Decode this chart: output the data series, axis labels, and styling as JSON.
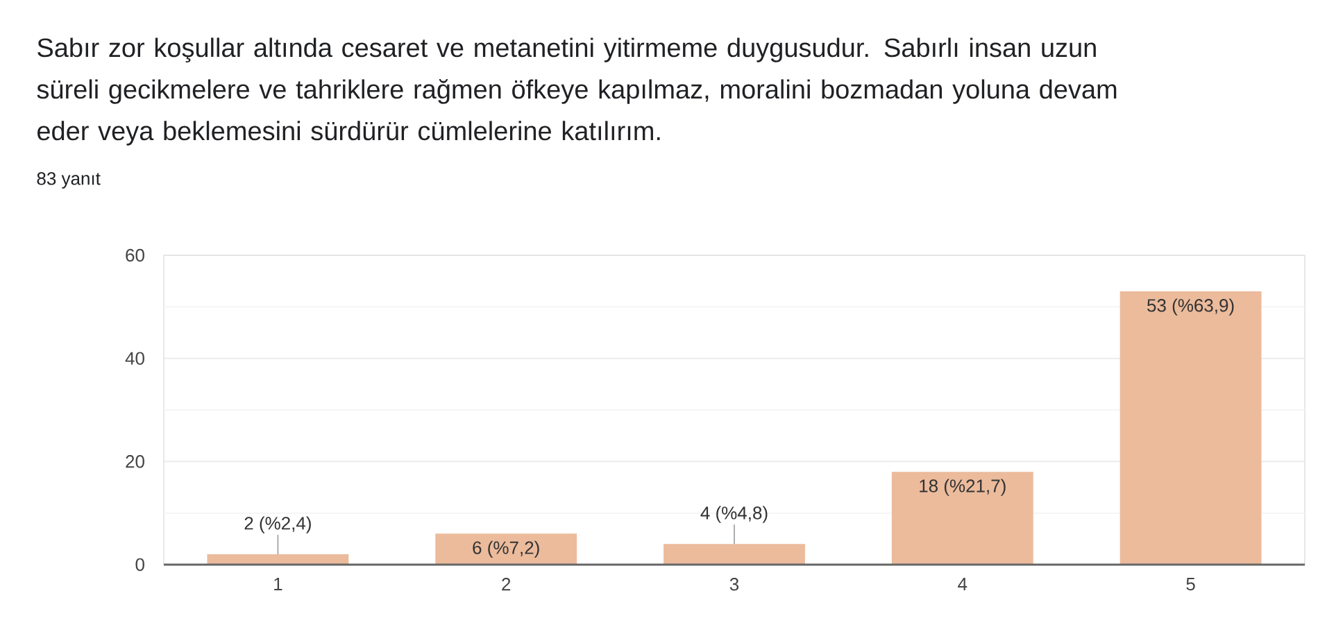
{
  "chart_data": {
    "type": "bar",
    "title": "Sabır zor koşullar altında cesaret ve metanetini yitirmeme duygusudur. Sabırlı insan uzun süreli gecikmelere ve tahriklere rağmen öfkeye kapılmaz, moralini bozmadan yoluna devam eder veya beklemesini sürdürür cümlelerine katılırım.",
    "subtitle": "83 yanıt",
    "categories": [
      "1",
      "2",
      "3",
      "4",
      "5"
    ],
    "values": [
      2,
      6,
      4,
      18,
      53
    ],
    "color": "#ebbb9c",
    "value_labels": [
      "2 (%2,4)",
      "6 (%7,2)",
      "4 (%4,8)",
      "18 (%21,7)",
      "53 (%63,9)"
    ],
    "ylim": [
      0,
      60
    ],
    "yticks": [
      0,
      {
        "value": 10,
        "label": null
      },
      20,
      {
        "value": 30,
        "label": null
      },
      40,
      {
        "value": 50,
        "label": null
      },
      60
    ],
    "grid": "y"
  }
}
